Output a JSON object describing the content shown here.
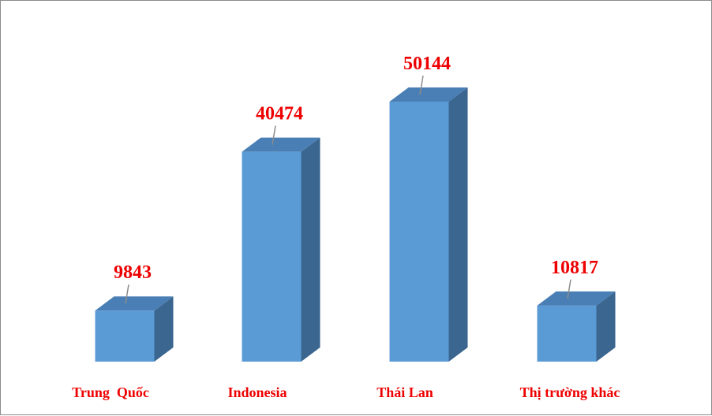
{
  "chart_data": {
    "type": "bar",
    "style": "3d-column",
    "categories": [
      "Trung  Quốc",
      "Indonesia",
      "Thái Lan",
      "Thị trường khác"
    ],
    "values": [
      9843,
      40474,
      50144,
      10817
    ],
    "data_labels": [
      "9843",
      "40474",
      "50144",
      "10817"
    ],
    "title": "",
    "xlabel": "",
    "ylabel": "",
    "ylim": [
      0,
      50144
    ],
    "grid": false,
    "legend": "none",
    "colors": {
      "bar_front": "#5b9bd5",
      "bar_top": "#4a7fb5",
      "bar_side": "#3b6690",
      "label_text": "#ee0000",
      "leader_line": "#8c8c8c"
    }
  }
}
